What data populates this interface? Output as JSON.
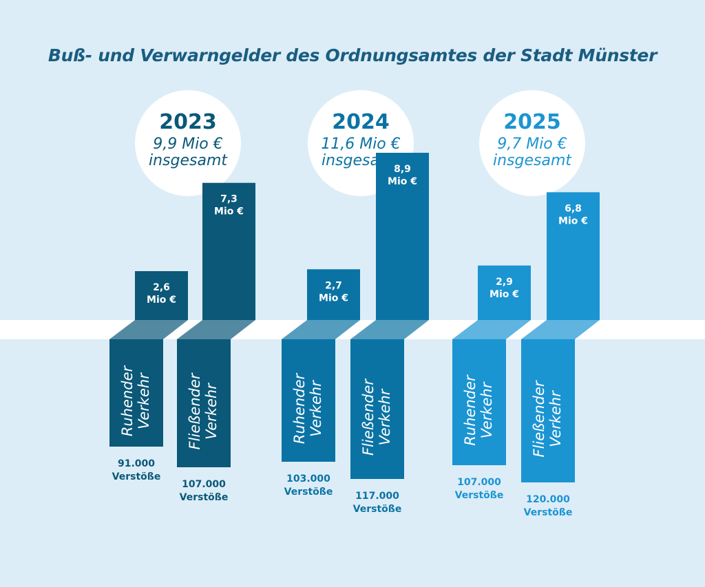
{
  "title": "Buß- und Verwarngelder des Ordnungsamtes der Stadt Münster",
  "colors": {
    "background": "#dcedf7",
    "band": "#ffffff",
    "year_2023": "#0b5878",
    "year_2024": "#0b73a4",
    "year_2025": "#1b94d2"
  },
  "chart_data": {
    "type": "bar",
    "title": "Buß- und Verwarngelder des Ordnungsamtes der Stadt Münster",
    "categories": [
      "Ruhender Verkehr",
      "Fließender Verkehr"
    ],
    "unit": "Mio €",
    "years": [
      {
        "year": "2023",
        "total_label": "9,9 Mio €",
        "total_suffix": "insgesamt",
        "total": 9.9,
        "color": "#0b5878",
        "bars": [
          {
            "category_line1": "Ruhender",
            "category_line2": "Verkehr",
            "value": 2.6,
            "value_label": "2,6",
            "unit_label": "Mio €",
            "violations": 91000,
            "violations_label": "91.000",
            "violations_unit": "Verstöße"
          },
          {
            "category_line1": "Fließender",
            "category_line2": "Verkehr",
            "value": 7.3,
            "value_label": "7,3",
            "unit_label": "Mio €",
            "violations": 107000,
            "violations_label": "107.000",
            "violations_unit": "Verstöße"
          }
        ]
      },
      {
        "year": "2024",
        "total_label": "11,6 Mio €",
        "total_suffix": "insgesamt",
        "total": 11.6,
        "color": "#0b73a4",
        "bars": [
          {
            "category_line1": "Ruhender",
            "category_line2": "Verkehr",
            "value": 2.7,
            "value_label": "2,7",
            "unit_label": "Mio €",
            "violations": 103000,
            "violations_label": "103.000",
            "violations_unit": "Verstöße"
          },
          {
            "category_line1": "Fließender",
            "category_line2": "Verkehr",
            "value": 8.9,
            "value_label": "8,9",
            "unit_label": "Mio €",
            "violations": 117000,
            "violations_label": "117.000",
            "violations_unit": "Verstöße"
          }
        ]
      },
      {
        "year": "2025",
        "total_label": "9,7 Mio €",
        "total_suffix": "insgesamt",
        "total": 9.7,
        "color": "#1b94d2",
        "bars": [
          {
            "category_line1": "Ruhender",
            "category_line2": "Verkehr",
            "value": 2.9,
            "value_label": "2,9",
            "unit_label": "Mio €",
            "violations": 107000,
            "violations_label": "107.000",
            "violations_unit": "Verstöße"
          },
          {
            "category_line1": "Fließender",
            "category_line2": "Verkehr",
            "value": 6.8,
            "value_label": "6,8",
            "unit_label": "Mio €",
            "violations": 120000,
            "violations_label": "120.000",
            "violations_unit": "Verstöße"
          }
        ]
      }
    ]
  }
}
